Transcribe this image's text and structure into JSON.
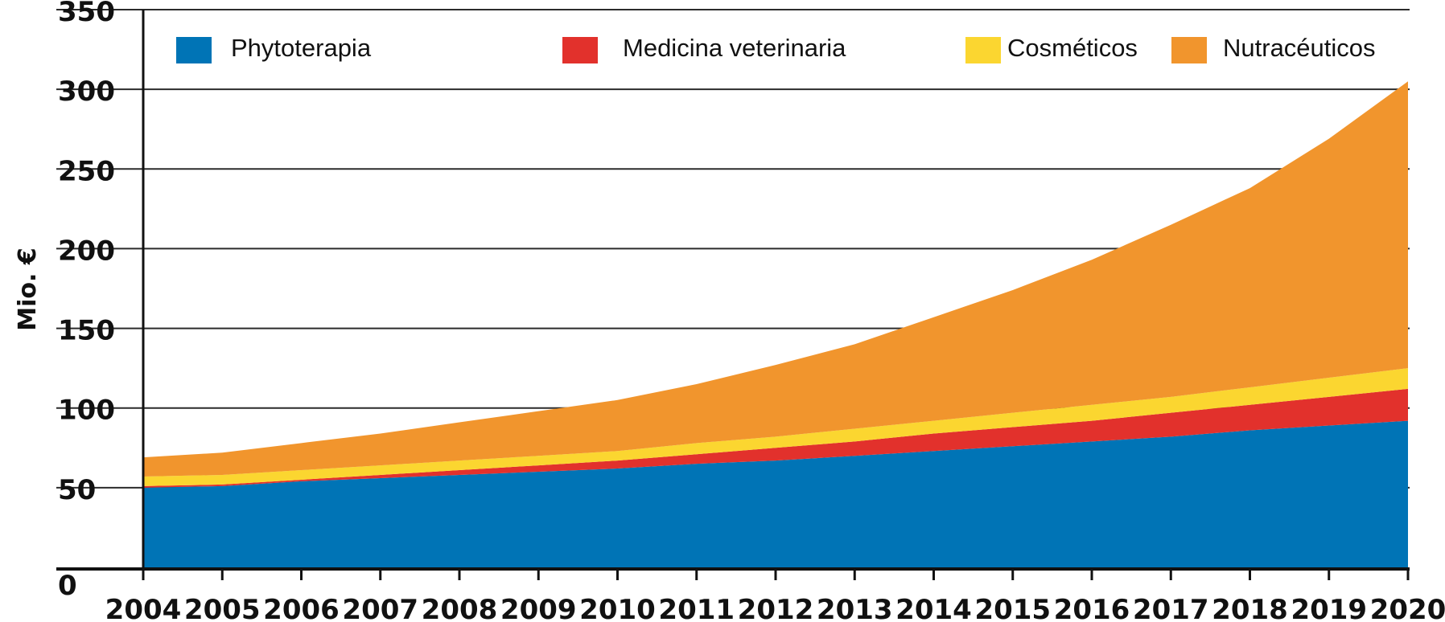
{
  "chart_data": {
    "type": "area",
    "stacked": true,
    "title": "",
    "xlabel": "",
    "ylabel": "Mio. €",
    "ylim": [
      0,
      350
    ],
    "yticks": [
      0,
      50,
      100,
      150,
      200,
      250,
      300,
      350
    ],
    "grid": true,
    "legend_position": "top",
    "categories": [
      "2004",
      "2005",
      "2006",
      "2007",
      "2008",
      "2009",
      "2010",
      "2011",
      "2012",
      "2013",
      "2014",
      "2015",
      "2016",
      "2017",
      "2018",
      "2019",
      "2020"
    ],
    "series": [
      {
        "name": "Phytoterapia",
        "color": "#0074b6",
        "values": [
          50,
          51,
          54,
          56,
          58,
          60,
          62,
          65,
          67,
          70,
          73,
          76,
          79,
          82,
          86,
          89,
          92
        ]
      },
      {
        "name": "Medicina veterinaria",
        "color": "#e2312c",
        "values": [
          1,
          1,
          1,
          2,
          3,
          4,
          5,
          6,
          8,
          9,
          11,
          12,
          13,
          15,
          16,
          18,
          20
        ]
      },
      {
        "name": "Cosméticos",
        "color": "#fbd630",
        "values": [
          6,
          6,
          6,
          6,
          6,
          6,
          6,
          7,
          7,
          8,
          8,
          9,
          10,
          10,
          11,
          12,
          13
        ]
      },
      {
        "name": "Nutracéuticos",
        "color": "#f1952d",
        "values": [
          12,
          14,
          17,
          20,
          24,
          28,
          32,
          37,
          45,
          53,
          65,
          77,
          91,
          108,
          125,
          150,
          180
        ]
      }
    ]
  }
}
